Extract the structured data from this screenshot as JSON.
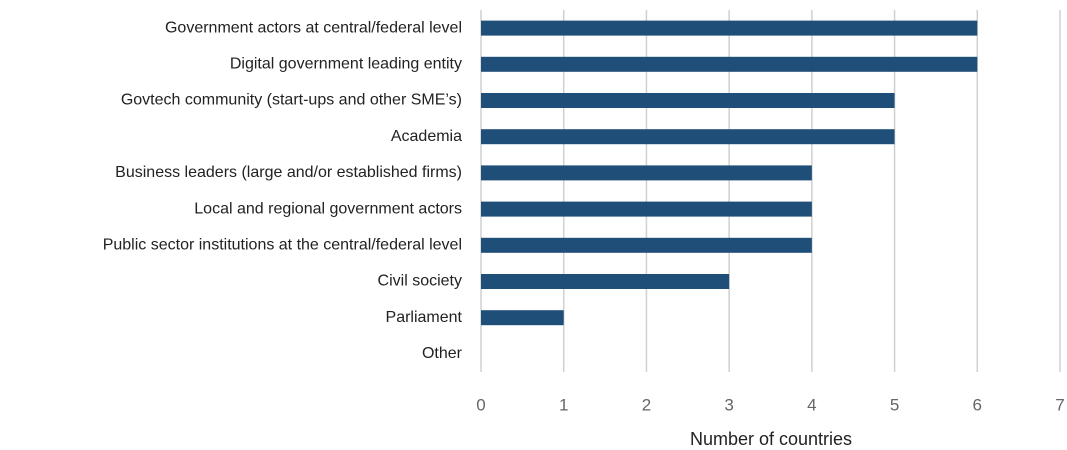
{
  "chart_data": {
    "type": "bar",
    "orientation": "horizontal",
    "x_label": "Number of countries",
    "categories": [
      "Government actors at central/federal level",
      "Digital government leading entity",
      "Govtech community (start-ups and other SME’s)",
      "Academia",
      "Business leaders (large and/or established firms)",
      "Local and regional government actors",
      "Public sector institutions at the central/federal level",
      "Civil society",
      "Parliament",
      "Other"
    ],
    "values": [
      6,
      6,
      5,
      5,
      4,
      4,
      4,
      3,
      1,
      0
    ],
    "color": "#1f4e79",
    "xlim": [
      0,
      7
    ],
    "xticks": [
      0,
      1,
      2,
      3,
      4,
      5,
      6,
      7
    ],
    "grid": true
  }
}
